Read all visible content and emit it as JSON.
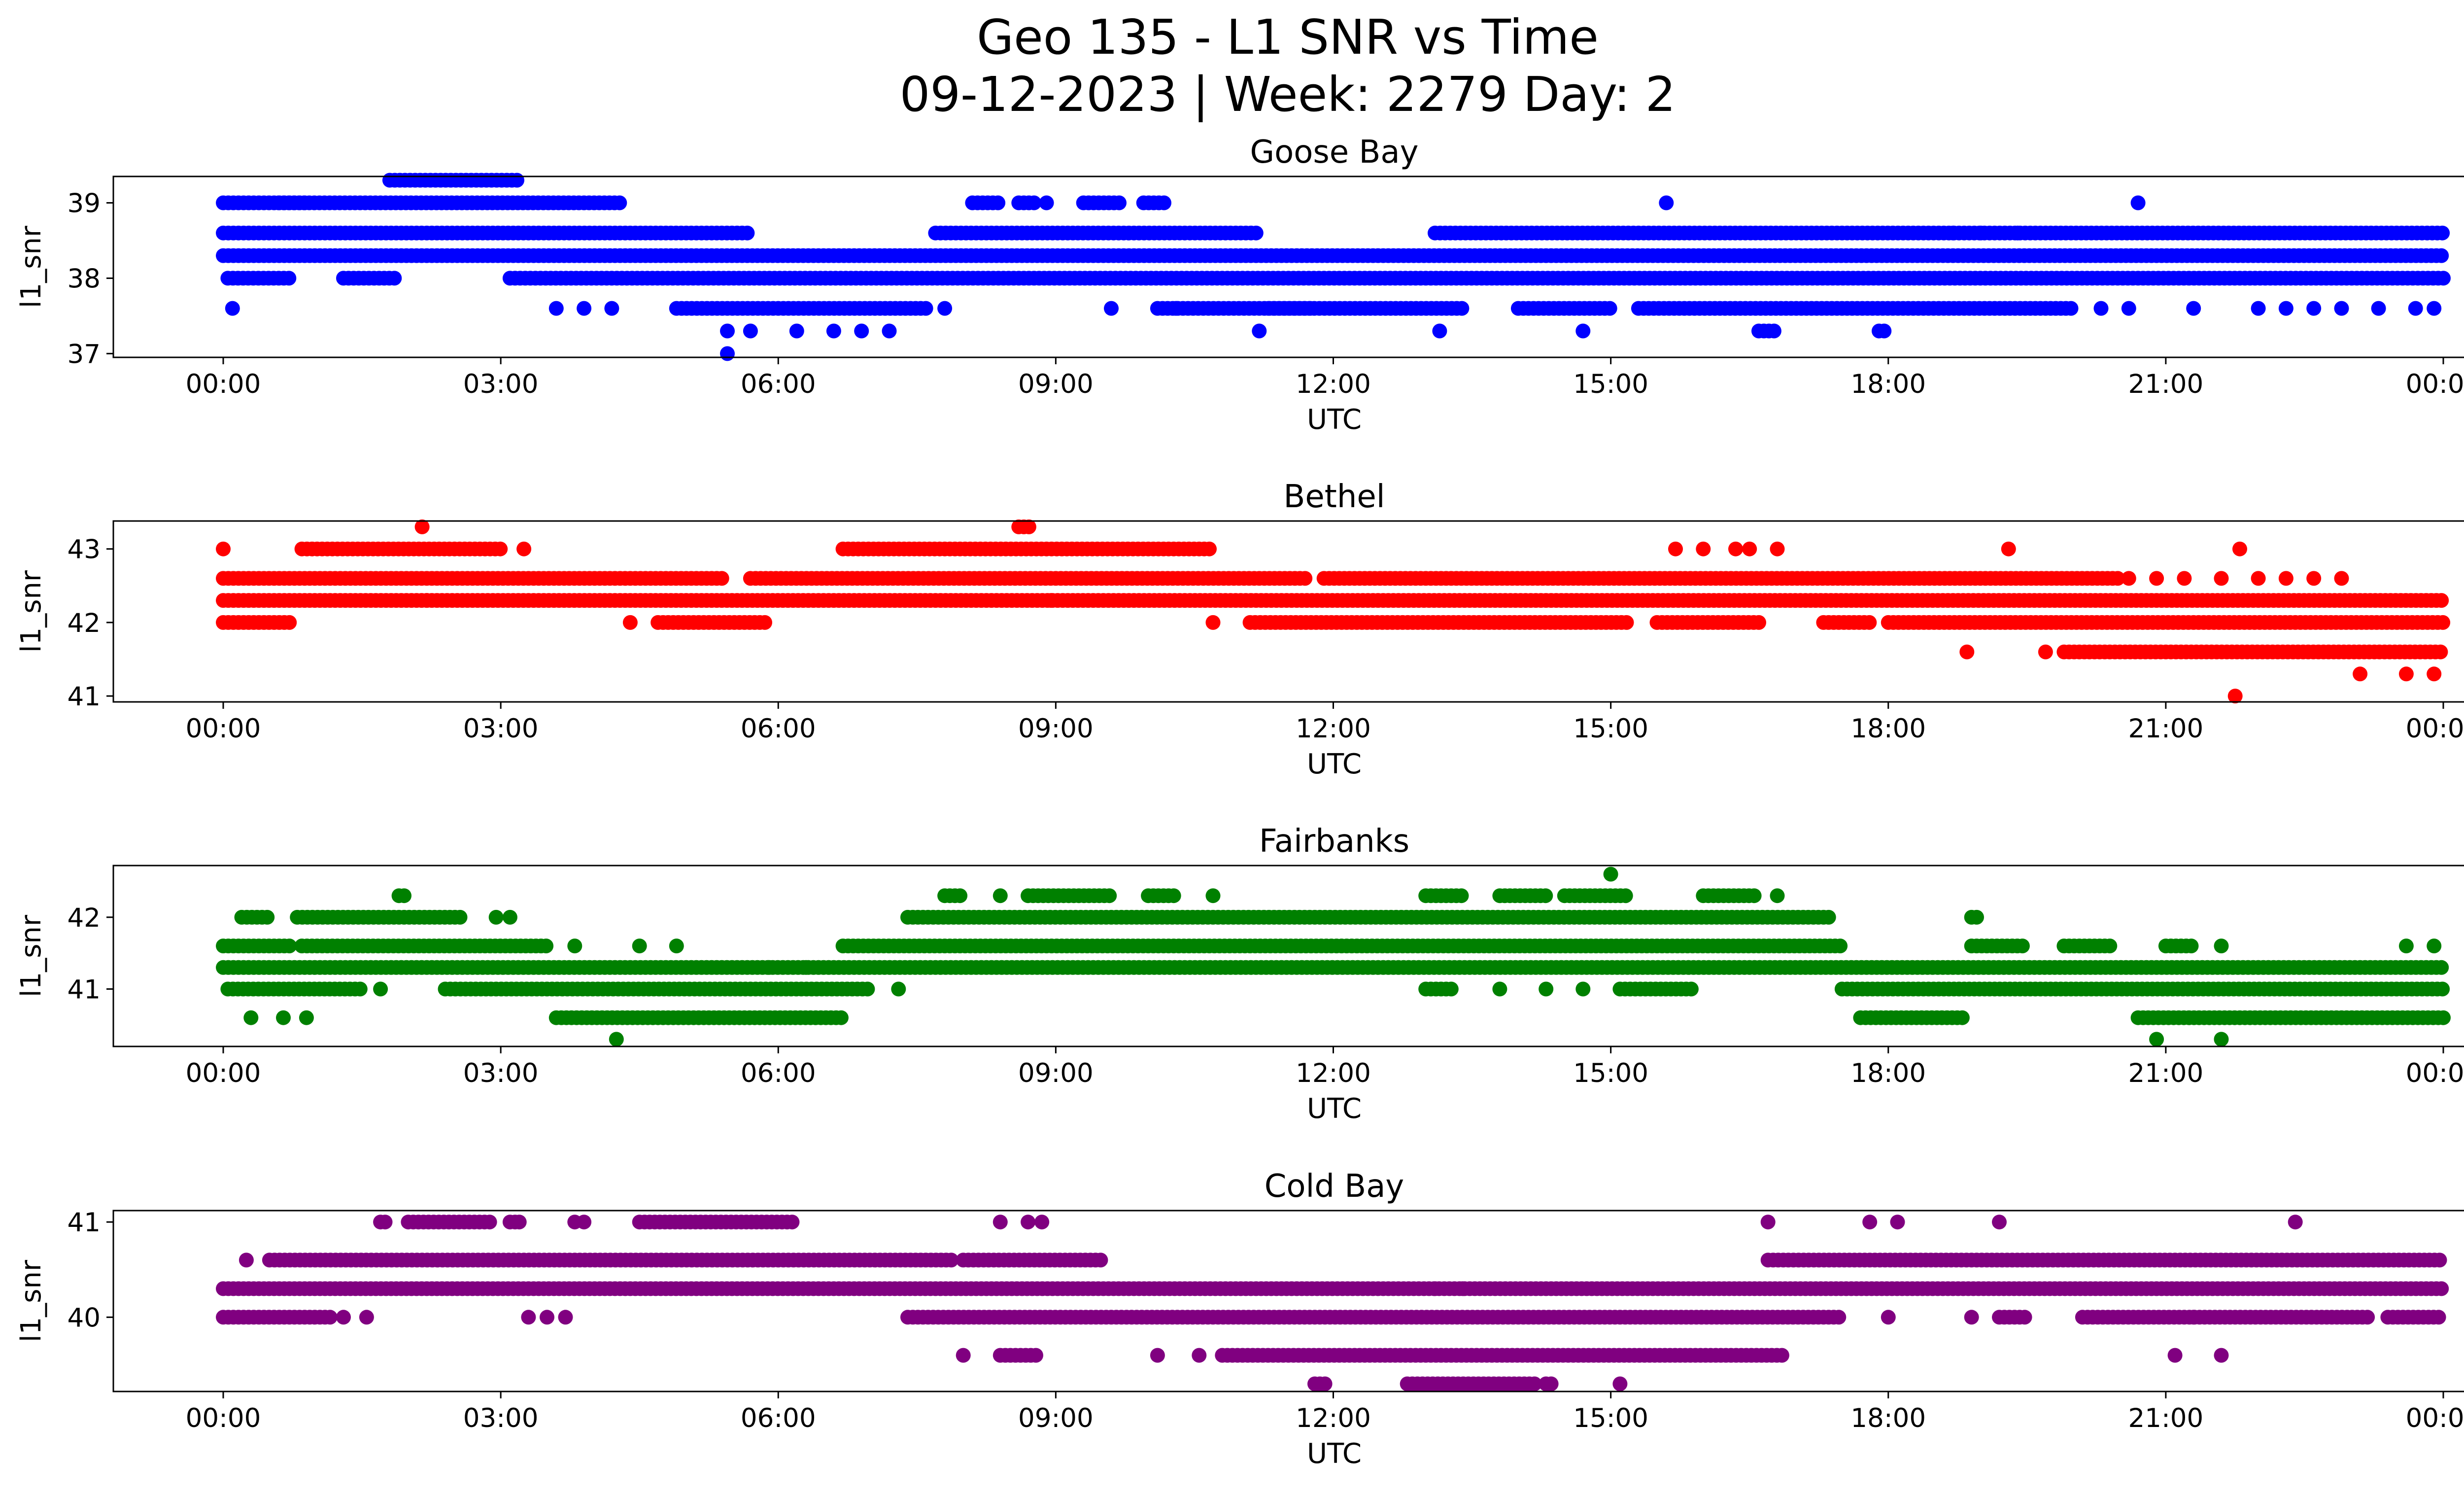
{
  "figure": {
    "title_line1": "Geo 135 - L1 SNR vs Time",
    "title_line2": "09-12-2023 | Week: 2279 Day: 2"
  },
  "chart_data": [
    {
      "type": "scatter",
      "title": "Goose Bay",
      "xlabel": "UTC",
      "ylabel": "l1_snr",
      "color": "#0000ff",
      "xlim": [
        "2023-09-12 00:00",
        "2023-09-13 00:00"
      ],
      "ylim": [
        36.95,
        39.35
      ],
      "yticks": [
        37,
        38,
        39
      ],
      "xtick_labels": [
        "00:00",
        "03:00",
        "06:00",
        "09:00",
        "12:00",
        "15:00",
        "18:00",
        "21:00",
        "00:00"
      ],
      "levels": [
        {
          "y": 38.3,
          "segments": [
            [
              0.0,
              24.0
            ]
          ]
        },
        {
          "y": 38.0,
          "segments": [
            [
              0.05,
              0.75
            ],
            [
              1.3,
              1.9
            ],
            [
              3.1,
              24.0
            ]
          ]
        },
        {
          "y": 38.6,
          "segments": [
            [
              0.0,
              5.7
            ],
            [
              7.7,
              11.2
            ],
            [
              13.1,
              24.0
            ]
          ]
        },
        {
          "y": 39.0,
          "segments": [
            [
              0.0,
              0.9
            ],
            [
              0.6,
              4.3
            ],
            [
              8.1,
              8.4
            ],
            [
              8.6,
              8.8
            ],
            [
              9.3,
              9.7
            ],
            [
              9.95,
              10.2
            ]
          ]
        },
        {
          "y": 39.3,
          "segments": [
            [
              1.8,
              3.2
            ]
          ]
        },
        {
          "y": 37.6,
          "segments": [
            [
              4.9,
              7.6
            ],
            [
              10.1,
              11.8
            ],
            [
              11.3,
              13.4
            ],
            [
              14.0,
              15.0
            ],
            [
              15.3,
              20.0
            ]
          ]
        },
        {
          "y": 37.3,
          "segments": [
            [
              5.45,
              5.5
            ],
            [
              16.6,
              16.8
            ],
            [
              17.9,
              18.0
            ]
          ]
        },
        {
          "y": 37.0,
          "segments": [
            [
              5.45,
              5.5
            ]
          ]
        }
      ],
      "sparse_points": [
        [
          0.1,
          37.6
        ],
        [
          3.6,
          37.6
        ],
        [
          3.9,
          37.6
        ],
        [
          4.2,
          37.6
        ],
        [
          7.8,
          37.6
        ],
        [
          9.6,
          37.6
        ],
        [
          10.3,
          37.6
        ],
        [
          6.2,
          37.3
        ],
        [
          6.6,
          37.3
        ],
        [
          6.9,
          37.3
        ],
        [
          7.2,
          37.3
        ],
        [
          11.2,
          37.3
        ],
        [
          13.15,
          37.3
        ],
        [
          14.7,
          37.3
        ],
        [
          5.7,
          37.3
        ],
        [
          8.9,
          39.0
        ],
        [
          15.6,
          39.0
        ],
        [
          20.7,
          39.0
        ],
        [
          20.3,
          37.6
        ],
        [
          20.6,
          37.6
        ],
        [
          21.3,
          37.6
        ],
        [
          22.0,
          37.6
        ],
        [
          22.3,
          37.6
        ],
        [
          22.6,
          37.6
        ],
        [
          22.9,
          37.6
        ],
        [
          23.3,
          37.6
        ],
        [
          23.7,
          37.6
        ],
        [
          23.9,
          37.6
        ],
        [
          18.7,
          38.6
        ],
        [
          19.0,
          38.6
        ],
        [
          19.4,
          38.6
        ]
      ]
    },
    {
      "type": "scatter",
      "title": "Bethel",
      "xlabel": "UTC",
      "ylabel": "l1_snr",
      "color": "#ff0000",
      "xlim": [
        "2023-09-12 00:00",
        "2023-09-13 00:00"
      ],
      "ylim": [
        40.92,
        43.38
      ],
      "yticks": [
        41,
        42,
        43
      ],
      "xtick_labels": [
        "00:00",
        "03:00",
        "06:00",
        "09:00",
        "12:00",
        "15:00",
        "18:00",
        "21:00",
        "00:00"
      ],
      "levels": [
        {
          "y": 42.3,
          "segments": [
            [
              0.0,
              24.0
            ]
          ]
        },
        {
          "y": 42.6,
          "segments": [
            [
              0.0,
              5.4
            ],
            [
              5.7,
              11.7
            ],
            [
              11.9,
              20.5
            ]
          ]
        },
        {
          "y": 42.0,
          "segments": [
            [
              0.0,
              0.75
            ],
            [
              4.7,
              5.9
            ],
            [
              11.1,
              15.2
            ],
            [
              15.5,
              16.6
            ],
            [
              17.3,
              17.8
            ],
            [
              18.0,
              24.0
            ]
          ]
        },
        {
          "y": 43.0,
          "segments": [
            [
              0.85,
              3.0
            ],
            [
              6.7,
              10.7
            ]
          ]
        },
        {
          "y": 43.3,
          "segments": [
            [
              8.6,
              8.75
            ]
          ]
        },
        {
          "y": 41.6,
          "segments": [
            [
              19.9,
              24.0
            ]
          ]
        }
      ],
      "sparse_points": [
        [
          0.0,
          43.0
        ],
        [
          2.15,
          43.3
        ],
        [
          3.25,
          43.0
        ],
        [
          15.7,
          43.0
        ],
        [
          16.0,
          43.0
        ],
        [
          16.35,
          43.0
        ],
        [
          16.5,
          43.0
        ],
        [
          16.8,
          43.0
        ],
        [
          19.3,
          43.0
        ],
        [
          21.8,
          43.0
        ],
        [
          18.85,
          41.6
        ],
        [
          19.7,
          41.6
        ],
        [
          21.75,
          41.0
        ],
        [
          23.1,
          41.3
        ],
        [
          23.6,
          41.3
        ],
        [
          23.9,
          41.3
        ],
        [
          10.7,
          42.0
        ],
        [
          4.4,
          42.0
        ],
        [
          8.95,
          42.3
        ],
        [
          2.2,
          42.3
        ],
        [
          20.6,
          42.6
        ],
        [
          20.9,
          42.6
        ],
        [
          21.2,
          42.6
        ],
        [
          21.6,
          42.6
        ],
        [
          22.0,
          42.6
        ],
        [
          22.3,
          42.6
        ],
        [
          22.6,
          42.6
        ],
        [
          22.9,
          42.6
        ]
      ]
    },
    {
      "type": "scatter",
      "title": "Fairbanks",
      "xlabel": "UTC",
      "ylabel": "l1_snr",
      "color": "#008000",
      "xlim": [
        "2023-09-12 00:00",
        "2023-09-13 00:00"
      ],
      "ylim": [
        40.2,
        42.72
      ],
      "yticks": [
        41,
        42
      ],
      "xtick_labels": [
        "00:00",
        "03:00",
        "06:00",
        "09:00",
        "12:00",
        "15:00",
        "18:00",
        "21:00",
        "00:00"
      ],
      "levels": [
        {
          "y": 41.3,
          "segments": [
            [
              0.0,
              24.0
            ]
          ]
        },
        {
          "y": 41.6,
          "segments": [
            [
              0.0,
              0.75
            ],
            [
              0.85,
              3.5
            ],
            [
              6.7,
              17.5
            ],
            [
              18.9,
              19.5
            ],
            [
              19.9,
              20.4
            ],
            [
              21.0,
              21.3
            ]
          ]
        },
        {
          "y": 41.0,
          "segments": [
            [
              0.05,
              1.5
            ],
            [
              2.4,
              7.0
            ],
            [
              13.0,
              13.3
            ],
            [
              15.1,
              15.9
            ],
            [
              17.5,
              24.0
            ]
          ]
        },
        {
          "y": 40.6,
          "segments": [
            [
              3.6,
              6.7
            ],
            [
              17.7,
              18.8
            ],
            [
              20.7,
              24.0
            ]
          ]
        },
        {
          "y": 42.0,
          "segments": [
            [
              0.2,
              0.5
            ],
            [
              0.8,
              2.6
            ],
            [
              7.4,
              17.4
            ],
            [
              18.9,
              19.0
            ]
          ]
        },
        {
          "y": 42.3,
          "segments": [
            [
              1.9,
              2.0
            ],
            [
              7.8,
              8.0
            ],
            [
              8.7,
              9.6
            ],
            [
              10.0,
              10.3
            ],
            [
              13.0,
              13.4
            ],
            [
              13.8,
              14.3
            ],
            [
              14.5,
              15.2
            ],
            [
              16.0,
              16.6
            ]
          ]
        }
      ],
      "sparse_points": [
        [
          15.0,
          42.6
        ],
        [
          4.25,
          40.3
        ],
        [
          20.9,
          40.3
        ],
        [
          21.6,
          40.3
        ],
        [
          0.3,
          40.6
        ],
        [
          0.65,
          40.6
        ],
        [
          0.9,
          40.6
        ],
        [
          1.7,
          41.0
        ],
        [
          7.3,
          41.0
        ],
        [
          13.8,
          41.0
        ],
        [
          14.3,
          41.0
        ],
        [
          14.7,
          41.0
        ],
        [
          2.95,
          42.0
        ],
        [
          3.1,
          42.0
        ],
        [
          3.8,
          41.6
        ],
        [
          4.5,
          41.6
        ],
        [
          4.9,
          41.6
        ],
        [
          23.6,
          41.6
        ],
        [
          23.9,
          41.6
        ],
        [
          21.6,
          41.6
        ],
        [
          10.7,
          42.3
        ],
        [
          8.4,
          42.3
        ],
        [
          16.8,
          42.3
        ],
        [
          5.9,
          41.3
        ],
        [
          6.3,
          41.3
        ]
      ]
    },
    {
      "type": "scatter",
      "title": "Cold Bay",
      "xlabel": "UTC",
      "ylabel": "l1_snr",
      "color": "#800080",
      "xlim": [
        "2023-09-12 00:00",
        "2023-09-13 00:00"
      ],
      "ylim": [
        39.22,
        41.12
      ],
      "yticks": [
        40,
        41
      ],
      "xtick_labels": [
        "00:00",
        "03:00",
        "06:00",
        "09:00",
        "12:00",
        "15:00",
        "18:00",
        "21:00",
        "00:00"
      ],
      "levels": [
        {
          "y": 40.3,
          "segments": [
            [
              0.0,
              24.0
            ]
          ]
        },
        {
          "y": 40.6,
          "segments": [
            [
              0.5,
              7.9
            ],
            [
              8.0,
              9.5
            ],
            [
              16.7,
              24.0
            ]
          ]
        },
        {
          "y": 40.0,
          "segments": [
            [
              0.0,
              1.2
            ],
            [
              7.4,
              17.5
            ],
            [
              19.2,
              19.5
            ],
            [
              20.1,
              23.2
            ],
            [
              23.4,
              24.0
            ]
          ]
        },
        {
          "y": 41.0,
          "segments": [
            [
              2.0,
              2.9
            ],
            [
              3.1,
              3.2
            ],
            [
              4.5,
              6.2
            ]
          ]
        },
        {
          "y": 39.6,
          "segments": [
            [
              8.4,
              8.8
            ],
            [
              10.8,
              16.9
            ]
          ]
        },
        {
          "y": 39.3,
          "segments": [
            [
              11.8,
              11.95
            ],
            [
              12.8,
              14.2
            ],
            [
              14.3,
              14.4
            ]
          ]
        }
      ],
      "sparse_points": [
        [
          1.7,
          41.0
        ],
        [
          1.75,
          41.0
        ],
        [
          3.2,
          41.0
        ],
        [
          3.8,
          41.0
        ],
        [
          3.9,
          41.0
        ],
        [
          8.4,
          41.0
        ],
        [
          8.7,
          41.0
        ],
        [
          8.85,
          41.0
        ],
        [
          16.7,
          41.0
        ],
        [
          17.8,
          41.0
        ],
        [
          18.1,
          41.0
        ],
        [
          19.2,
          41.0
        ],
        [
          22.4,
          41.0
        ],
        [
          0.25,
          40.6
        ],
        [
          1.3,
          40.0
        ],
        [
          1.55,
          40.0
        ],
        [
          3.3,
          40.0
        ],
        [
          3.5,
          40.0
        ],
        [
          3.7,
          40.0
        ],
        [
          18.9,
          40.0
        ],
        [
          21.3,
          40.0
        ],
        [
          8.0,
          39.6
        ],
        [
          10.1,
          39.6
        ],
        [
          10.55,
          39.6
        ],
        [
          21.1,
          39.6
        ],
        [
          21.6,
          39.6
        ],
        [
          13.1,
          40.3
        ],
        [
          13.4,
          40.3
        ],
        [
          15.1,
          39.3
        ],
        [
          18.0,
          40.0
        ]
      ]
    }
  ]
}
